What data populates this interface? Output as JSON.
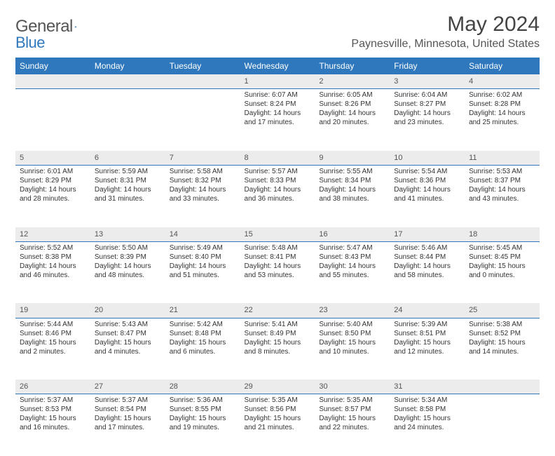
{
  "brand": {
    "text1": "General",
    "text2": "Blue"
  },
  "title": "May 2024",
  "location": "Paynesville, Minnesota, United States",
  "colors": {
    "accent": "#2f78bd",
    "header_text": "#ffffff",
    "daynum_bg": "#ececec",
    "body_text": "#333333"
  },
  "weekdays": [
    "Sunday",
    "Monday",
    "Tuesday",
    "Wednesday",
    "Thursday",
    "Friday",
    "Saturday"
  ],
  "weeks": [
    [
      null,
      null,
      null,
      {
        "n": "1",
        "sr": "6:07 AM",
        "ss": "8:24 PM",
        "dl": "14 hours and 17 minutes."
      },
      {
        "n": "2",
        "sr": "6:05 AM",
        "ss": "8:26 PM",
        "dl": "14 hours and 20 minutes."
      },
      {
        "n": "3",
        "sr": "6:04 AM",
        "ss": "8:27 PM",
        "dl": "14 hours and 23 minutes."
      },
      {
        "n": "4",
        "sr": "6:02 AM",
        "ss": "8:28 PM",
        "dl": "14 hours and 25 minutes."
      }
    ],
    [
      {
        "n": "5",
        "sr": "6:01 AM",
        "ss": "8:29 PM",
        "dl": "14 hours and 28 minutes."
      },
      {
        "n": "6",
        "sr": "5:59 AM",
        "ss": "8:31 PM",
        "dl": "14 hours and 31 minutes."
      },
      {
        "n": "7",
        "sr": "5:58 AM",
        "ss": "8:32 PM",
        "dl": "14 hours and 33 minutes."
      },
      {
        "n": "8",
        "sr": "5:57 AM",
        "ss": "8:33 PM",
        "dl": "14 hours and 36 minutes."
      },
      {
        "n": "9",
        "sr": "5:55 AM",
        "ss": "8:34 PM",
        "dl": "14 hours and 38 minutes."
      },
      {
        "n": "10",
        "sr": "5:54 AM",
        "ss": "8:36 PM",
        "dl": "14 hours and 41 minutes."
      },
      {
        "n": "11",
        "sr": "5:53 AM",
        "ss": "8:37 PM",
        "dl": "14 hours and 43 minutes."
      }
    ],
    [
      {
        "n": "12",
        "sr": "5:52 AM",
        "ss": "8:38 PM",
        "dl": "14 hours and 46 minutes."
      },
      {
        "n": "13",
        "sr": "5:50 AM",
        "ss": "8:39 PM",
        "dl": "14 hours and 48 minutes."
      },
      {
        "n": "14",
        "sr": "5:49 AM",
        "ss": "8:40 PM",
        "dl": "14 hours and 51 minutes."
      },
      {
        "n": "15",
        "sr": "5:48 AM",
        "ss": "8:41 PM",
        "dl": "14 hours and 53 minutes."
      },
      {
        "n": "16",
        "sr": "5:47 AM",
        "ss": "8:43 PM",
        "dl": "14 hours and 55 minutes."
      },
      {
        "n": "17",
        "sr": "5:46 AM",
        "ss": "8:44 PM",
        "dl": "14 hours and 58 minutes."
      },
      {
        "n": "18",
        "sr": "5:45 AM",
        "ss": "8:45 PM",
        "dl": "15 hours and 0 minutes."
      }
    ],
    [
      {
        "n": "19",
        "sr": "5:44 AM",
        "ss": "8:46 PM",
        "dl": "15 hours and 2 minutes."
      },
      {
        "n": "20",
        "sr": "5:43 AM",
        "ss": "8:47 PM",
        "dl": "15 hours and 4 minutes."
      },
      {
        "n": "21",
        "sr": "5:42 AM",
        "ss": "8:48 PM",
        "dl": "15 hours and 6 minutes."
      },
      {
        "n": "22",
        "sr": "5:41 AM",
        "ss": "8:49 PM",
        "dl": "15 hours and 8 minutes."
      },
      {
        "n": "23",
        "sr": "5:40 AM",
        "ss": "8:50 PM",
        "dl": "15 hours and 10 minutes."
      },
      {
        "n": "24",
        "sr": "5:39 AM",
        "ss": "8:51 PM",
        "dl": "15 hours and 12 minutes."
      },
      {
        "n": "25",
        "sr": "5:38 AM",
        "ss": "8:52 PM",
        "dl": "15 hours and 14 minutes."
      }
    ],
    [
      {
        "n": "26",
        "sr": "5:37 AM",
        "ss": "8:53 PM",
        "dl": "15 hours and 16 minutes."
      },
      {
        "n": "27",
        "sr": "5:37 AM",
        "ss": "8:54 PM",
        "dl": "15 hours and 17 minutes."
      },
      {
        "n": "28",
        "sr": "5:36 AM",
        "ss": "8:55 PM",
        "dl": "15 hours and 19 minutes."
      },
      {
        "n": "29",
        "sr": "5:35 AM",
        "ss": "8:56 PM",
        "dl": "15 hours and 21 minutes."
      },
      {
        "n": "30",
        "sr": "5:35 AM",
        "ss": "8:57 PM",
        "dl": "15 hours and 22 minutes."
      },
      {
        "n": "31",
        "sr": "5:34 AM",
        "ss": "8:58 PM",
        "dl": "15 hours and 24 minutes."
      },
      null
    ]
  ],
  "labels": {
    "sunrise": "Sunrise:",
    "sunset": "Sunset:",
    "daylight": "Daylight:"
  }
}
